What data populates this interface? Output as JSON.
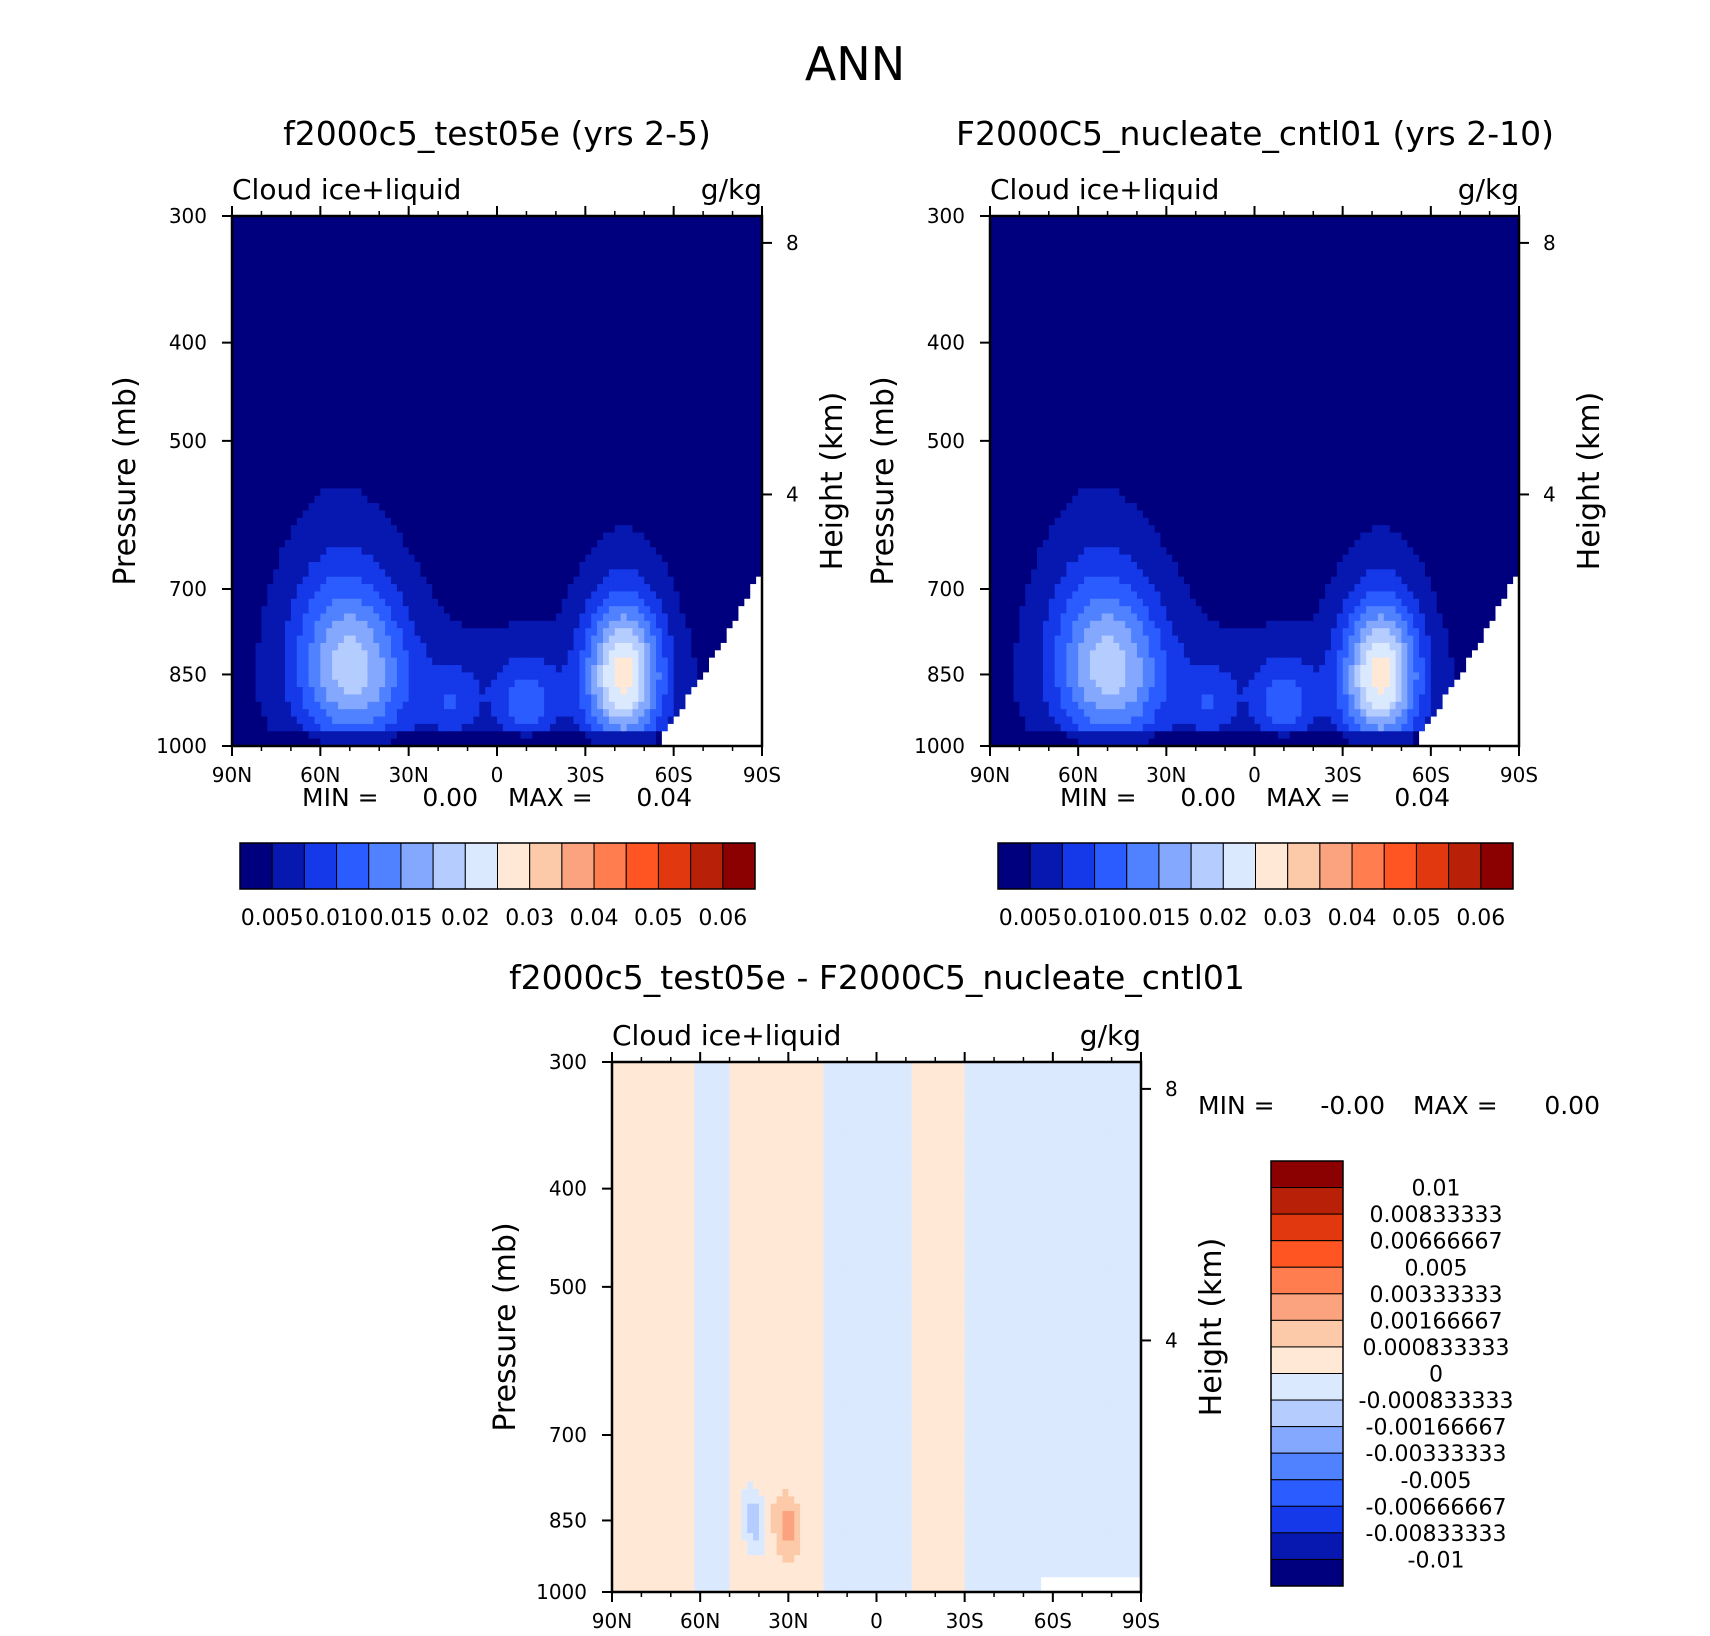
{
  "figure_title": "ANN",
  "colors": {
    "ramp8": [
      "#00007f",
      "#0718b0",
      "#1538e8",
      "#2a5cff",
      "#5082ff",
      "#85a8ff",
      "#b5ccff",
      "#dbe9ff"
    ],
    "ramp_warm": [
      "#ffe9d6",
      "#fccaa8",
      "#fba37e",
      "#ff7d4f",
      "#ff5522",
      "#e23810",
      "#b82008",
      "#8b0000"
    ]
  },
  "chart_data": [
    {
      "type": "heatmap",
      "id": "test",
      "title": "f2000c5_test05e (yrs 2-5)",
      "left_label": "Cloud ice+liquid",
      "right_label": "g/kg",
      "xlabel": "",
      "ylabel": "Pressure (mb)",
      "y2label": "Height (km)",
      "x_ticks": [
        "90N",
        "60N",
        "30N",
        "0",
        "30S",
        "60S",
        "90S"
      ],
      "x_tick_values": [
        90,
        60,
        30,
        0,
        -30,
        -60,
        -90
      ],
      "y_ticks": [
        300,
        400,
        500,
        700,
        850,
        1000
      ],
      "y2_ticks": [
        8,
        4
      ],
      "xlim": [
        90,
        -90
      ],
      "ylim": [
        1000,
        300
      ],
      "min_label": "MIN =",
      "min_value": "0.00",
      "max_label": "MAX =",
      "max_value": "0.04",
      "colorbar": {
        "labels": [
          "0.005",
          "0.010",
          "0.015",
          "0.02",
          "0.03",
          "0.04",
          "0.05",
          "0.06"
        ],
        "levels": [
          0.005,
          0.01,
          0.015,
          0.02,
          0.025,
          0.03,
          0.035,
          0.04,
          0.045,
          0.05,
          0.055,
          0.06
        ],
        "colors": [
          "#00007f",
          "#0718b0",
          "#1538e8",
          "#2a5cff",
          "#5082ff",
          "#85a8ff",
          "#b5ccff",
          "#dbe9ff",
          "#ffe9d6",
          "#fccaa8",
          "#fba37e",
          "#ff7d4f",
          "#ff5522",
          "#e23810",
          "#b82008",
          "#8b0000"
        ]
      },
      "features": [
        {
          "lat": 48,
          "p": 845,
          "peak": 0.03,
          "note": "northern mid-latitude maximum"
        },
        {
          "lat": -43,
          "p": 850,
          "peak": 0.04,
          "note": "southern mid-latitude maximum"
        },
        {
          "lat": -10,
          "p": 900,
          "peak": 0.017
        },
        {
          "lat": 15,
          "p": 905,
          "peak": 0.011
        }
      ]
    },
    {
      "type": "heatmap",
      "id": "control",
      "title": "F2000C5_nucleate_cntl01 (yrs 2-10)",
      "left_label": "Cloud ice+liquid",
      "right_label": "g/kg",
      "xlabel": "",
      "ylabel": "Pressure (mb)",
      "y2label": "Height (km)",
      "x_ticks": [
        "90N",
        "60N",
        "30N",
        "0",
        "30S",
        "60S",
        "90S"
      ],
      "x_tick_values": [
        90,
        60,
        30,
        0,
        -30,
        -60,
        -90
      ],
      "y_ticks": [
        300,
        400,
        500,
        700,
        850,
        1000
      ],
      "y2_ticks": [
        8,
        4
      ],
      "xlim": [
        90,
        -90
      ],
      "ylim": [
        1000,
        300
      ],
      "min_label": "MIN =",
      "min_value": "0.00",
      "max_label": "MAX =",
      "max_value": "0.04",
      "colorbar": {
        "labels": [
          "0.005",
          "0.010",
          "0.015",
          "0.02",
          "0.03",
          "0.04",
          "0.05",
          "0.06"
        ],
        "levels": [
          0.005,
          0.01,
          0.015,
          0.02,
          0.025,
          0.03,
          0.035,
          0.04,
          0.045,
          0.05,
          0.055,
          0.06
        ],
        "colors": [
          "#00007f",
          "#0718b0",
          "#1538e8",
          "#2a5cff",
          "#5082ff",
          "#85a8ff",
          "#b5ccff",
          "#dbe9ff",
          "#ffe9d6",
          "#fccaa8",
          "#fba37e",
          "#ff7d4f",
          "#ff5522",
          "#e23810",
          "#b82008",
          "#8b0000"
        ]
      },
      "features": [
        {
          "lat": 48,
          "p": 845,
          "peak": 0.03
        },
        {
          "lat": -43,
          "p": 850,
          "peak": 0.04
        },
        {
          "lat": -10,
          "p": 900,
          "peak": 0.017
        },
        {
          "lat": 15,
          "p": 905,
          "peak": 0.011
        }
      ]
    },
    {
      "type": "heatmap",
      "id": "difference",
      "title": "f2000c5_test05e - F2000C5_nucleate_cntl01",
      "left_label": "Cloud ice+liquid",
      "right_label": "g/kg",
      "xlabel": "",
      "ylabel": "Pressure (mb)",
      "y2label": "Height (km)",
      "x_ticks": [
        "90N",
        "60N",
        "30N",
        "0",
        "30S",
        "60S",
        "90S"
      ],
      "x_tick_values": [
        90,
        60,
        30,
        0,
        -30,
        -60,
        -90
      ],
      "y_ticks": [
        300,
        400,
        500,
        700,
        850,
        1000
      ],
      "y2_ticks": [
        8,
        4
      ],
      "xlim": [
        90,
        -90
      ],
      "ylim": [
        1000,
        300
      ],
      "min_label": "MIN =",
      "min_value": "-0.00",
      "max_label": "MAX =",
      "max_value": "0.00",
      "colorbar": {
        "labels": [
          "0.01",
          "0.00833333",
          "0.00666667",
          "0.005",
          "0.00333333",
          "0.00166667",
          "0.000833333",
          "0",
          "-0.000833333",
          "-0.00166667",
          "-0.00333333",
          "-0.005",
          "-0.00666667",
          "-0.00833333",
          "-0.01"
        ],
        "colors": [
          "#8b0000",
          "#b82008",
          "#e23810",
          "#ff5522",
          "#ff7d4f",
          "#fba37e",
          "#fccaa8",
          "#ffe9d6",
          "#dbe9ff",
          "#b5ccff",
          "#85a8ff",
          "#5082ff",
          "#2a5cff",
          "#1538e8",
          "#0718b0",
          "#00007f"
        ]
      },
      "features": [
        {
          "lat_range": [
            50,
            18
          ],
          "sign": "positive",
          "level": 0.0005
        },
        {
          "lat_range": [
            -12,
            -30
          ],
          "sign": "positive",
          "level": 0.0005
        },
        {
          "lat_range": [
            18,
            -12
          ],
          "sign": "negative",
          "level": -0.0005
        },
        {
          "lat_range": [
            -30,
            -90
          ],
          "sign": "negative",
          "level": -0.0005
        },
        {
          "lat": 30,
          "p": 860,
          "peak": 0.002
        },
        {
          "lat": 42,
          "p": 850,
          "peak": -0.0012
        }
      ]
    }
  ]
}
